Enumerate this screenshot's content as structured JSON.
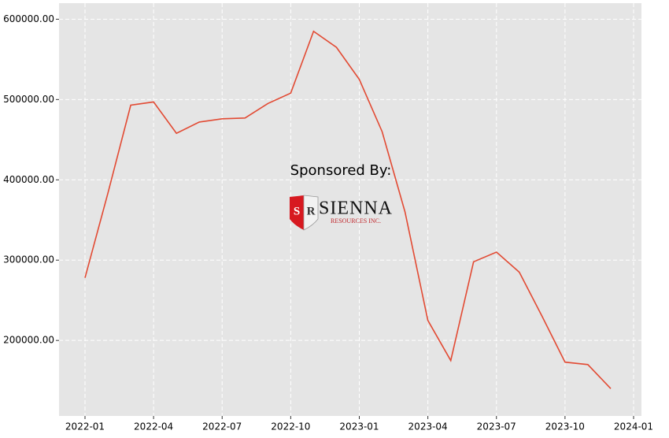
{
  "chart_data": {
    "type": "line",
    "x": [
      "2022-01",
      "2022-02",
      "2022-03",
      "2022-04",
      "2022-05",
      "2022-06",
      "2022-07",
      "2022-08",
      "2022-09",
      "2022-10",
      "2022-11",
      "2022-12",
      "2023-01",
      "2023-02",
      "2023-03",
      "2023-04",
      "2023-05",
      "2023-06",
      "2023-07",
      "2023-08",
      "2023-09",
      "2023-10",
      "2023-11",
      "2023-12"
    ],
    "values": [
      278000,
      383000,
      493000,
      497000,
      458000,
      472000,
      476000,
      477000,
      495000,
      508000,
      585000,
      565000,
      525000,
      460000,
      360000,
      225000,
      175000,
      298000,
      310000,
      285000,
      230000,
      173000,
      170000,
      140000
    ],
    "color": "#e24a33",
    "ylim": [
      106000,
      620000
    ],
    "yticks": [
      {
        "value": 200000,
        "label": "200000.00"
      },
      {
        "value": 300000,
        "label": "300000.00"
      },
      {
        "value": 400000,
        "label": "400000.00"
      },
      {
        "value": 500000,
        "label": "500000.00"
      },
      {
        "value": 600000,
        "label": "600000.00"
      }
    ],
    "xticks": [
      "2022-01",
      "2022-04",
      "2022-07",
      "2022-10",
      "2023-01",
      "2023-04",
      "2023-07",
      "2023-10",
      "2024-01"
    ],
    "grid": true,
    "annotation": "Sponsored By:",
    "logo": {
      "initials": [
        "S",
        "R"
      ],
      "name": "SIENNA",
      "subtitle": "RESOURCES INC."
    }
  }
}
